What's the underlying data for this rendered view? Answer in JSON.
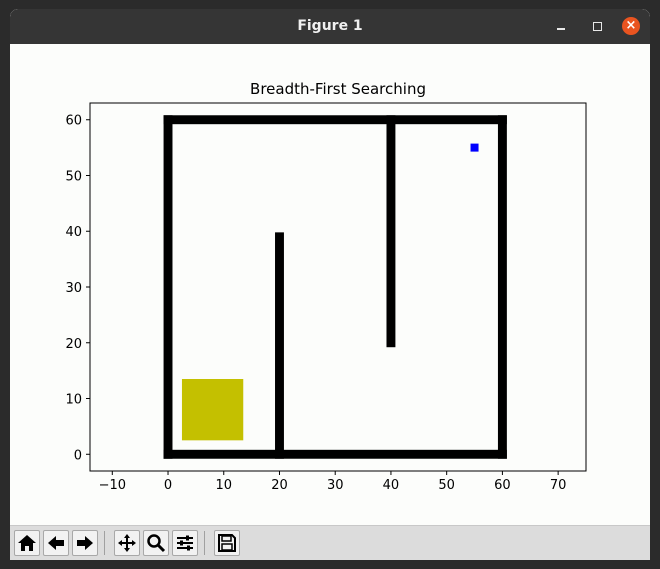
{
  "window": {
    "title": "Figure 1"
  },
  "toolbar": {
    "buttons": [
      {
        "name": "home-icon"
      },
      {
        "name": "back-icon"
      },
      {
        "name": "forward-icon"
      },
      {
        "name": "pan-icon"
      },
      {
        "name": "zoom-icon"
      },
      {
        "name": "configure-subplots-icon"
      },
      {
        "name": "save-icon"
      }
    ]
  },
  "chart_data": {
    "type": "scatter",
    "title": "Breadth-First Searching",
    "xlabel": "",
    "ylabel": "",
    "xlim": [
      -14,
      75
    ],
    "ylim": [
      -3,
      63
    ],
    "xticks": [
      -10,
      0,
      10,
      20,
      30,
      40,
      50,
      60,
      70
    ],
    "yticks": [
      0,
      10,
      20,
      30,
      40,
      50,
      60
    ],
    "grid": false,
    "obstacles_color": "#000000",
    "obstacle_segments": [
      {
        "from": [
          0,
          0
        ],
        "to": [
          60,
          0
        ]
      },
      {
        "from": [
          60,
          0
        ],
        "to": [
          60,
          60
        ]
      },
      {
        "from": [
          0,
          60
        ],
        "to": [
          60,
          60
        ]
      },
      {
        "from": [
          0,
          0
        ],
        "to": [
          0,
          60
        ]
      },
      {
        "from": [
          20,
          0
        ],
        "to": [
          20,
          39
        ]
      },
      {
        "from": [
          40,
          20
        ],
        "to": [
          40,
          60
        ]
      }
    ],
    "visited_region": {
      "color": "#c4c000",
      "x_range": [
        2.5,
        13.5
      ],
      "y_range": [
        2.5,
        13.5
      ]
    },
    "goal": {
      "x": 55,
      "y": 55,
      "color": "#0000ff"
    }
  }
}
